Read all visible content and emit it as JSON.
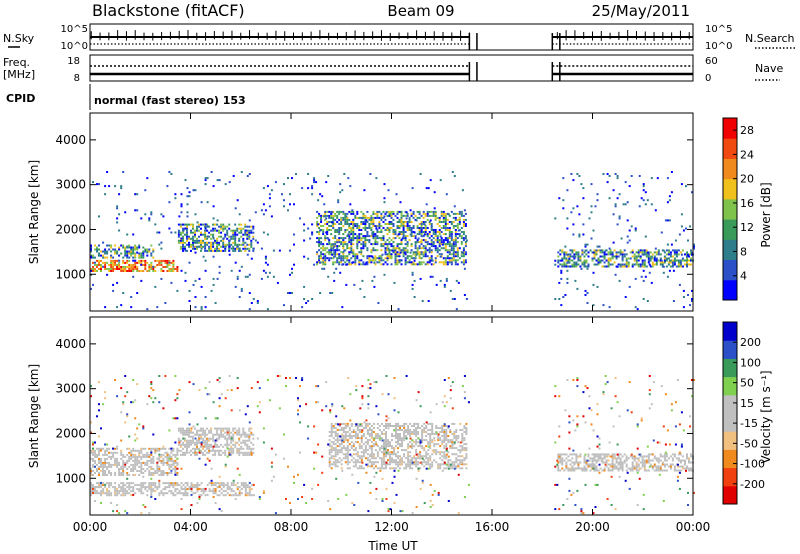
{
  "header": {
    "station": "Blackstone (fitACF)",
    "beam": "Beam 09",
    "date": "25/May/2011"
  },
  "panels": {
    "nsky": {
      "label": "N.Sky",
      "ticks": [
        "10^5",
        "10^0"
      ]
    },
    "nsearch": {
      "label": "N.Search",
      "ticks": [
        "10^5",
        "10^0"
      ]
    },
    "freq": {
      "label_line1": "Freq.",
      "label_line2": "[MHz]",
      "ticks": [
        "18",
        "8"
      ]
    },
    "nave": {
      "label": "Nave",
      "ticks": [
        "60",
        "0"
      ]
    },
    "cpid": {
      "label": "CPID",
      "value": "normal (fast stereo) 153"
    }
  },
  "colors": {
    "power_scale": [
      "#0000ff",
      "#2b50c8",
      "#2e7d8a",
      "#3a9a5a",
      "#7fc24c",
      "#f0c01c",
      "#f08a1c",
      "#f04a10",
      "#f00000"
    ],
    "velocity_scale": [
      "#e00000",
      "#f04010",
      "#f08a1c",
      "#f0c080",
      "#c0c0c0",
      "#c0c0c0",
      "#80d050",
      "#3a9a5a",
      "#2b50c8",
      "#0000cc"
    ],
    "ground_scatter": "#bebebe"
  },
  "chart_data": [
    {
      "type": "heatmap",
      "title": "",
      "xlabel": "Time UT",
      "ylabel": "Slant Range [km]",
      "x_ticks": [
        "00:00",
        "04:00",
        "08:00",
        "12:00",
        "16:00",
        "20:00",
        "00:00"
      ],
      "y_ticks": [
        "1000",
        "2000",
        "3000",
        "4000"
      ],
      "xlim": [
        0,
        24
      ],
      "ylim": [
        180,
        4600
      ],
      "gap_hours": [
        15.1,
        18.4
      ],
      "colorbar": {
        "label": "Power [dB]",
        "ticks": [
          "4",
          "8",
          "12",
          "16",
          "20",
          "24",
          "28"
        ],
        "range": [
          0,
          30
        ]
      },
      "echo_bands": [
        {
          "t": [
            0.0,
            3.5
          ],
          "range": [
            1050,
            1300
          ],
          "level": "high"
        },
        {
          "t": [
            0.0,
            2.5
          ],
          "range": [
            1350,
            1650
          ],
          "level": "mid"
        },
        {
          "t": [
            3.5,
            6.5
          ],
          "range": [
            1500,
            2100
          ],
          "level": "mid"
        },
        {
          "t": [
            9.0,
            15.0
          ],
          "range": [
            1200,
            2400
          ],
          "level": "mid"
        },
        {
          "t": [
            18.6,
            24.0
          ],
          "range": [
            1150,
            1550
          ],
          "level": "mid"
        },
        {
          "t": [
            0.0,
            24.0
          ],
          "range": [
            200,
            3300
          ],
          "level": "sparse"
        }
      ]
    },
    {
      "type": "heatmap",
      "title": "",
      "xlabel": "Time UT",
      "ylabel": "Slant Range [km]",
      "x_ticks": [
        "00:00",
        "04:00",
        "08:00",
        "12:00",
        "16:00",
        "20:00",
        "00:00"
      ],
      "y_ticks": [
        "1000",
        "2000",
        "3000",
        "4000"
      ],
      "xlim": [
        0,
        24
      ],
      "ylim": [
        180,
        4600
      ],
      "gap_hours": [
        15.1,
        18.4
      ],
      "colorbar": {
        "label": "Velocity [m s⁻¹]",
        "ticks": [
          "200",
          "100",
          "50",
          "15",
          "-15",
          "-50",
          "-100",
          "-200"
        ],
        "range": [
          -250,
          250
        ]
      },
      "echo_bands": [
        {
          "t": [
            0.0,
            3.5
          ],
          "range": [
            1050,
            1650
          ],
          "level": "ground"
        },
        {
          "t": [
            0.0,
            6.5
          ],
          "range": [
            600,
            900
          ],
          "level": "ground"
        },
        {
          "t": [
            3.5,
            6.5
          ],
          "range": [
            1500,
            2100
          ],
          "level": "ground"
        },
        {
          "t": [
            9.5,
            15.0
          ],
          "range": [
            1200,
            2200
          ],
          "level": "ground"
        },
        {
          "t": [
            18.6,
            24.0
          ],
          "range": [
            1150,
            1550
          ],
          "level": "ground"
        },
        {
          "t": [
            0.0,
            24.0
          ],
          "range": [
            200,
            3300
          ],
          "level": "sparse"
        }
      ]
    }
  ]
}
